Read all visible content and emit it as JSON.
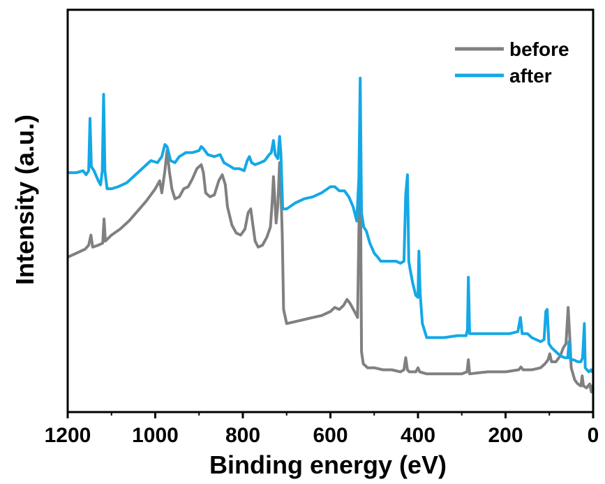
{
  "chart_data": {
    "type": "line",
    "title": "",
    "xlabel": "Binding energy (eV)",
    "ylabel": "Intensity (a.u.)",
    "xlim": [
      1200,
      0
    ],
    "ylim": [
      0,
      100
    ],
    "x_reversed": true,
    "y_ticks_shown": false,
    "xticks": [
      1200,
      1000,
      800,
      600,
      400,
      200,
      0
    ],
    "xtick_labels": [
      "1200",
      "1000",
      "800",
      "600",
      "400",
      "200",
      "0"
    ],
    "grid": false,
    "legend_position": "top-right",
    "series": [
      {
        "name": "before",
        "color": "#808080",
        "points": [
          [
            1200,
            38.5
          ],
          [
            1180,
            39.5
          ],
          [
            1160,
            40.5
          ],
          [
            1152,
            41.5
          ],
          [
            1147,
            44.0
          ],
          [
            1143,
            41.0
          ],
          [
            1130,
            41.5
          ],
          [
            1120,
            42.0
          ],
          [
            1117,
            48.0
          ],
          [
            1114,
            42.5
          ],
          [
            1100,
            44.0
          ],
          [
            1080,
            45.5
          ],
          [
            1060,
            47.5
          ],
          [
            1040,
            50.0
          ],
          [
            1020,
            52.5
          ],
          [
            1000,
            55.5
          ],
          [
            990,
            57.5
          ],
          [
            985,
            54.5
          ],
          [
            978,
            60.0
          ],
          [
            973,
            65.0
          ],
          [
            968,
            60.0
          ],
          [
            962,
            55.5
          ],
          [
            955,
            53.0
          ],
          [
            945,
            53.5
          ],
          [
            935,
            55.5
          ],
          [
            925,
            56.0
          ],
          [
            915,
            58.0
          ],
          [
            905,
            60.5
          ],
          [
            895,
            61.5
          ],
          [
            890,
            59.5
          ],
          [
            885,
            54.5
          ],
          [
            875,
            53.5
          ],
          [
            865,
            54.0
          ],
          [
            855,
            57.5
          ],
          [
            847,
            59.0
          ],
          [
            840,
            56.5
          ],
          [
            835,
            51.0
          ],
          [
            825,
            46.5
          ],
          [
            815,
            44.5
          ],
          [
            805,
            44.0
          ],
          [
            795,
            45.5
          ],
          [
            788,
            49.5
          ],
          [
            782,
            50.5
          ],
          [
            777,
            46.5
          ],
          [
            772,
            42.5
          ],
          [
            765,
            41.0
          ],
          [
            755,
            41.5
          ],
          [
            745,
            43.5
          ],
          [
            737,
            46.0
          ],
          [
            733,
            52.0
          ],
          [
            730,
            58.5
          ],
          [
            727,
            53.0
          ],
          [
            724,
            47.0
          ],
          [
            720,
            51.5
          ],
          [
            716,
            62.0
          ],
          [
            713,
            55.0
          ],
          [
            710,
            44.0
          ],
          [
            707,
            25.5
          ],
          [
            700,
            22.0
          ],
          [
            680,
            22.5
          ],
          [
            660,
            23.0
          ],
          [
            640,
            23.5
          ],
          [
            620,
            24.0
          ],
          [
            600,
            25.0
          ],
          [
            590,
            26.0
          ],
          [
            580,
            25.5
          ],
          [
            570,
            26.5
          ],
          [
            562,
            28.0
          ],
          [
            555,
            27.0
          ],
          [
            545,
            25.0
          ],
          [
            538,
            23.5
          ],
          [
            535,
            45.0
          ],
          [
            532,
            66.0
          ],
          [
            529,
            15.0
          ],
          [
            525,
            12.0
          ],
          [
            515,
            11.0
          ],
          [
            500,
            11.0
          ],
          [
            480,
            10.5
          ],
          [
            460,
            10.5
          ],
          [
            440,
            10.0
          ],
          [
            432,
            10.5
          ],
          [
            428,
            13.5
          ],
          [
            424,
            10.5
          ],
          [
            420,
            10.0
          ],
          [
            405,
            10.0
          ],
          [
            400,
            11.0
          ],
          [
            396,
            10.0
          ],
          [
            380,
            9.5
          ],
          [
            360,
            9.5
          ],
          [
            340,
            9.5
          ],
          [
            320,
            9.5
          ],
          [
            300,
            9.5
          ],
          [
            288,
            10.0
          ],
          [
            285,
            13.0
          ],
          [
            282,
            9.5
          ],
          [
            260,
            9.8
          ],
          [
            240,
            10.0
          ],
          [
            200,
            10.0
          ],
          [
            170,
            10.5
          ],
          [
            165,
            11.2
          ],
          [
            160,
            10.5
          ],
          [
            140,
            10.5
          ],
          [
            120,
            11.0
          ],
          [
            110,
            12.0
          ],
          [
            103,
            13.0
          ],
          [
            99,
            14.5
          ],
          [
            95,
            12.5
          ],
          [
            85,
            12.5
          ],
          [
            75,
            14.0
          ],
          [
            68,
            16.0
          ],
          [
            62,
            17.0
          ],
          [
            57,
            26.0
          ],
          [
            54,
            20.0
          ],
          [
            50,
            11.0
          ],
          [
            42,
            8.0
          ],
          [
            35,
            7.0
          ],
          [
            28,
            6.5
          ],
          [
            25,
            9.0
          ],
          [
            22,
            6.5
          ],
          [
            15,
            6.0
          ],
          [
            8,
            7.0
          ],
          [
            4,
            5.0
          ],
          [
            2,
            6.5
          ],
          [
            0,
            5.5
          ]
        ]
      },
      {
        "name": "after",
        "color": "#14a8e6",
        "points": [
          [
            1200,
            59.5
          ],
          [
            1180,
            59.5
          ],
          [
            1165,
            60.0
          ],
          [
            1158,
            59.0
          ],
          [
            1152,
            60.0
          ],
          [
            1149,
            73.0
          ],
          [
            1146,
            61.0
          ],
          [
            1140,
            60.0
          ],
          [
            1130,
            57.5
          ],
          [
            1125,
            56.5
          ],
          [
            1121,
            60.0
          ],
          [
            1118,
            79.0
          ],
          [
            1115,
            60.0
          ],
          [
            1110,
            55.5
          ],
          [
            1100,
            55.5
          ],
          [
            1085,
            56.0
          ],
          [
            1065,
            57.0
          ],
          [
            1050,
            58.5
          ],
          [
            1030,
            60.5
          ],
          [
            1010,
            62.5
          ],
          [
            995,
            62.0
          ],
          [
            985,
            63.5
          ],
          [
            978,
            66.5
          ],
          [
            973,
            66.0
          ],
          [
            965,
            62.5
          ],
          [
            955,
            62.0
          ],
          [
            945,
            63.5
          ],
          [
            930,
            64.5
          ],
          [
            915,
            64.5
          ],
          [
            900,
            65.0
          ],
          [
            895,
            66.0
          ],
          [
            890,
            65.5
          ],
          [
            880,
            64.0
          ],
          [
            865,
            63.5
          ],
          [
            852,
            64.0
          ],
          [
            843,
            62.0
          ],
          [
            835,
            61.5
          ],
          [
            820,
            60.5
          ],
          [
            808,
            60.5
          ],
          [
            797,
            60.0
          ],
          [
            790,
            62.5
          ],
          [
            785,
            63.5
          ],
          [
            780,
            62.0
          ],
          [
            772,
            61.5
          ],
          [
            760,
            62.0
          ],
          [
            750,
            62.5
          ],
          [
            740,
            64.0
          ],
          [
            735,
            64.5
          ],
          [
            730,
            67.5
          ],
          [
            726,
            64.0
          ],
          [
            720,
            63.0
          ],
          [
            716,
            68.5
          ],
          [
            713,
            64.0
          ],
          [
            709,
            50.5
          ],
          [
            700,
            50.5
          ],
          [
            680,
            52.0
          ],
          [
            660,
            53.0
          ],
          [
            640,
            53.5
          ],
          [
            620,
            54.5
          ],
          [
            600,
            56.0
          ],
          [
            590,
            56.0
          ],
          [
            580,
            55.0
          ],
          [
            568,
            55.0
          ],
          [
            558,
            53.5
          ],
          [
            548,
            51.0
          ],
          [
            540,
            47.5
          ],
          [
            535,
            58.0
          ],
          [
            532,
            83.0
          ],
          [
            529,
            49.5
          ],
          [
            524,
            46.0
          ],
          [
            518,
            45.0
          ],
          [
            510,
            42.0
          ],
          [
            500,
            39.5
          ],
          [
            492,
            38.5
          ],
          [
            485,
            37.5
          ],
          [
            470,
            37.5
          ],
          [
            460,
            37.5
          ],
          [
            450,
            37.5
          ],
          [
            440,
            37.0
          ],
          [
            432,
            37.5
          ],
          [
            428,
            54.0
          ],
          [
            424,
            59.0
          ],
          [
            421,
            37.5
          ],
          [
            418,
            35.5
          ],
          [
            412,
            32.0
          ],
          [
            405,
            29.0
          ],
          [
            400,
            28.5
          ],
          [
            398,
            40.0
          ],
          [
            395,
            29.5
          ],
          [
            390,
            22.0
          ],
          [
            380,
            18.5
          ],
          [
            360,
            18.5
          ],
          [
            340,
            18.5
          ],
          [
            310,
            19.0
          ],
          [
            290,
            19.0
          ],
          [
            287,
            20.5
          ],
          [
            285,
            33.5
          ],
          [
            282,
            19.5
          ],
          [
            270,
            19.5
          ],
          [
            250,
            19.5
          ],
          [
            230,
            19.5
          ],
          [
            210,
            19.5
          ],
          [
            190,
            19.5
          ],
          [
            172,
            20.0
          ],
          [
            166,
            23.5
          ],
          [
            162,
            19.5
          ],
          [
            150,
            19.5
          ],
          [
            140,
            18.5
          ],
          [
            120,
            17.5
          ],
          [
            112,
            18.0
          ],
          [
            108,
            25.0
          ],
          [
            105,
            25.5
          ],
          [
            101,
            17.0
          ],
          [
            95,
            16.0
          ],
          [
            85,
            15.0
          ],
          [
            75,
            14.0
          ],
          [
            65,
            13.5
          ],
          [
            58,
            13.5
          ],
          [
            55,
            17.5
          ],
          [
            52,
            13.0
          ],
          [
            45,
            13.0
          ],
          [
            35,
            12.5
          ],
          [
            28,
            12.5
          ],
          [
            24,
            13.5
          ],
          [
            20,
            22.0
          ],
          [
            18,
            11.0
          ],
          [
            10,
            10.0
          ],
          [
            5,
            10.5
          ],
          [
            2,
            10.0
          ],
          [
            0,
            10.0
          ]
        ]
      }
    ]
  }
}
